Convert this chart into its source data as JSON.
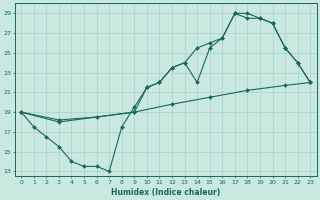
{
  "xlabel": "Humidex (Indice chaleur)",
  "bg_color": "#c8e8e0",
  "grid_color": "#a8d0c8",
  "line_color": "#1a6858",
  "xlim": [
    -0.5,
    23.5
  ],
  "ylim": [
    12.5,
    30.0
  ],
  "yticks": [
    13,
    15,
    17,
    19,
    21,
    23,
    25,
    27,
    29
  ],
  "xticks": [
    0,
    1,
    2,
    3,
    4,
    5,
    6,
    7,
    8,
    9,
    10,
    11,
    12,
    13,
    14,
    15,
    16,
    17,
    18,
    19,
    20,
    21,
    22,
    23
  ],
  "line_a_x": [
    0,
    1,
    2,
    3,
    4,
    5,
    6,
    7,
    8,
    9,
    10,
    11,
    12,
    13,
    14,
    15,
    16,
    17,
    18,
    19,
    20,
    21,
    22,
    23
  ],
  "line_a_y": [
    19,
    17.5,
    16.5,
    15.5,
    14.0,
    13.5,
    13.5,
    13.0,
    17.5,
    19.5,
    21.5,
    22.0,
    23.5,
    24.0,
    22.0,
    25.5,
    26.5,
    29.0,
    29.0,
    28.5,
    28.0,
    25.5,
    24.0,
    22.0
  ],
  "line_b_x": [
    0,
    3,
    9,
    10,
    11,
    12,
    13,
    14,
    15,
    16,
    17,
    18,
    19,
    20,
    21,
    22,
    23
  ],
  "line_b_y": [
    19,
    18.0,
    19.0,
    21.5,
    22.0,
    23.5,
    24.0,
    25.5,
    26.0,
    26.5,
    29.0,
    28.5,
    28.5,
    28.0,
    25.5,
    24.0,
    22.0
  ],
  "line_c_x": [
    0,
    3,
    6,
    9,
    12,
    15,
    18,
    21,
    23
  ],
  "line_c_y": [
    19,
    18.2,
    18.5,
    19.0,
    19.8,
    20.5,
    21.2,
    21.7,
    22.0
  ]
}
